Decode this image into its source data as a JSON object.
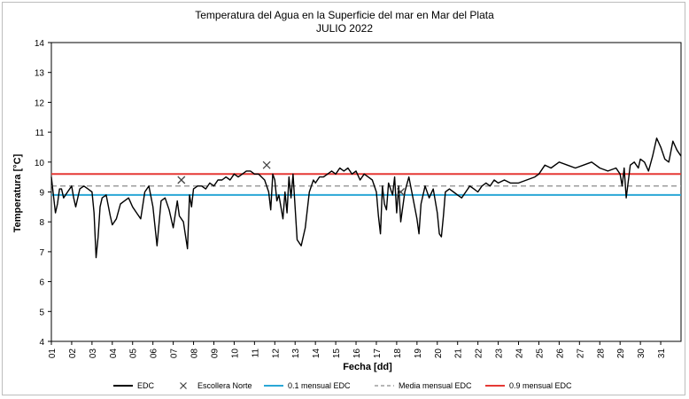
{
  "chart_data": {
    "type": "line",
    "title": "Temperatura del Agua en la Superficie del mar en Mar del Plata",
    "subtitle": "JULIO 2022",
    "xlabel": "Fecha [dd]",
    "ylabel": "Temperatura [°C]",
    "ylim": [
      4,
      14
    ],
    "yticks": [
      4,
      5,
      6,
      7,
      8,
      9,
      10,
      11,
      12,
      13,
      14
    ],
    "xlim": [
      1,
      32
    ],
    "xticks": [
      "01",
      "02",
      "03",
      "04",
      "05",
      "06",
      "07",
      "08",
      "09",
      "10",
      "11",
      "12",
      "13",
      "14",
      "15",
      "16",
      "17",
      "18",
      "19",
      "20",
      "21",
      "22",
      "23",
      "24",
      "25",
      "26",
      "27",
      "28",
      "29",
      "30",
      "31"
    ],
    "grid": false,
    "legend_position": "bottom",
    "series": [
      {
        "name": "EDC",
        "kind": "line",
        "color": "#000000",
        "x": [
          1.0,
          1.1,
          1.2,
          1.3,
          1.4,
          1.5,
          1.6,
          1.8,
          2.0,
          2.1,
          2.2,
          2.4,
          2.6,
          2.8,
          3.0,
          3.1,
          3.2,
          3.3,
          3.4,
          3.5,
          3.7,
          3.9,
          4.0,
          4.2,
          4.4,
          4.6,
          4.8,
          5.0,
          5.2,
          5.4,
          5.6,
          5.8,
          6.0,
          6.2,
          6.4,
          6.6,
          6.8,
          7.0,
          7.2,
          7.3,
          7.5,
          7.7,
          7.8,
          7.9,
          8.0,
          8.2,
          8.4,
          8.6,
          8.8,
          9.0,
          9.2,
          9.4,
          9.6,
          9.8,
          10.0,
          10.2,
          10.4,
          10.6,
          10.8,
          11.0,
          11.2,
          11.5,
          11.7,
          11.8,
          11.9,
          12.0,
          12.1,
          12.2,
          12.4,
          12.5,
          12.6,
          12.7,
          12.8,
          12.9,
          13.0,
          13.1,
          13.3,
          13.5,
          13.7,
          13.9,
          14.0,
          14.2,
          14.4,
          14.6,
          14.8,
          15.0,
          15.2,
          15.4,
          15.6,
          15.8,
          16.0,
          16.2,
          16.4,
          16.6,
          16.8,
          17.0,
          17.1,
          17.2,
          17.3,
          17.4,
          17.5,
          17.6,
          17.8,
          17.9,
          18.0,
          18.1,
          18.2,
          18.4,
          18.6,
          18.8,
          19.0,
          19.1,
          19.2,
          19.4,
          19.6,
          19.8,
          20.0,
          20.1,
          20.2,
          20.3,
          20.4,
          20.6,
          20.8,
          21.0,
          21.2,
          21.4,
          21.6,
          21.8,
          22.0,
          22.2,
          22.4,
          22.6,
          22.8,
          23.0,
          23.3,
          23.6,
          24.0,
          24.4,
          24.8,
          25.0,
          25.3,
          25.6,
          26.0,
          26.4,
          26.8,
          27.2,
          27.6,
          28.0,
          28.4,
          28.8,
          29.0,
          29.1,
          29.2,
          29.3,
          29.5,
          29.7,
          29.9,
          30.0,
          30.2,
          30.4,
          30.6,
          30.8,
          31.0,
          31.2,
          31.4,
          31.6,
          31.8,
          32.0
        ],
        "y": [
          9.5,
          8.9,
          8.3,
          8.6,
          9.1,
          9.1,
          8.8,
          9.0,
          9.2,
          8.8,
          8.5,
          9.1,
          9.2,
          9.1,
          9.0,
          8.3,
          6.8,
          7.5,
          8.5,
          8.8,
          8.9,
          8.2,
          7.9,
          8.1,
          8.6,
          8.7,
          8.8,
          8.5,
          8.3,
          8.1,
          9.0,
          9.2,
          8.5,
          7.2,
          8.7,
          8.8,
          8.4,
          7.8,
          8.7,
          8.2,
          8.0,
          7.1,
          8.9,
          8.5,
          9.1,
          9.2,
          9.2,
          9.1,
          9.3,
          9.2,
          9.4,
          9.4,
          9.5,
          9.4,
          9.6,
          9.5,
          9.6,
          9.7,
          9.7,
          9.6,
          9.6,
          9.4,
          9.0,
          8.4,
          9.6,
          9.4,
          8.7,
          8.9,
          8.1,
          9.0,
          8.3,
          9.5,
          8.8,
          9.6,
          8.5,
          7.4,
          7.2,
          7.8,
          9.0,
          9.4,
          9.3,
          9.5,
          9.5,
          9.6,
          9.7,
          9.6,
          9.8,
          9.7,
          9.8,
          9.6,
          9.7,
          9.4,
          9.6,
          9.5,
          9.4,
          9.0,
          8.2,
          7.6,
          9.2,
          8.6,
          8.4,
          9.3,
          8.9,
          9.5,
          8.3,
          9.2,
          8.0,
          9.0,
          9.5,
          8.8,
          8.1,
          7.6,
          8.6,
          9.2,
          8.8,
          9.1,
          8.3,
          7.6,
          7.5,
          8.2,
          9.0,
          9.1,
          9.0,
          8.9,
          8.8,
          9.0,
          9.2,
          9.1,
          9.0,
          9.2,
          9.3,
          9.2,
          9.4,
          9.3,
          9.4,
          9.3,
          9.3,
          9.4,
          9.5,
          9.6,
          9.9,
          9.8,
          10.0,
          9.9,
          9.8,
          9.9,
          10.0,
          9.8,
          9.7,
          9.8,
          9.6,
          9.2,
          9.8,
          8.8,
          9.9,
          10.0,
          9.8,
          10.1,
          10.0,
          9.7,
          10.2,
          10.8,
          10.5,
          10.1,
          10.0,
          10.7,
          10.4,
          10.2
        ]
      },
      {
        "name": "Escollera Norte",
        "kind": "scatter",
        "marker": "x",
        "color": "#444444",
        "x": [
          7.4,
          11.6,
          18.2
        ],
        "y": [
          9.4,
          9.9,
          9.0
        ]
      },
      {
        "name": "0.1 mensual EDC",
        "kind": "hline",
        "color": "#2aa7d6",
        "value": 8.9
      },
      {
        "name": "Media mensual EDC",
        "kind": "hline",
        "dashed": true,
        "color": "#9e9e9e",
        "value": 9.2
      },
      {
        "name": "0.9 mensual EDC",
        "kind": "hline",
        "color": "#e53935",
        "value": 9.6
      }
    ]
  }
}
